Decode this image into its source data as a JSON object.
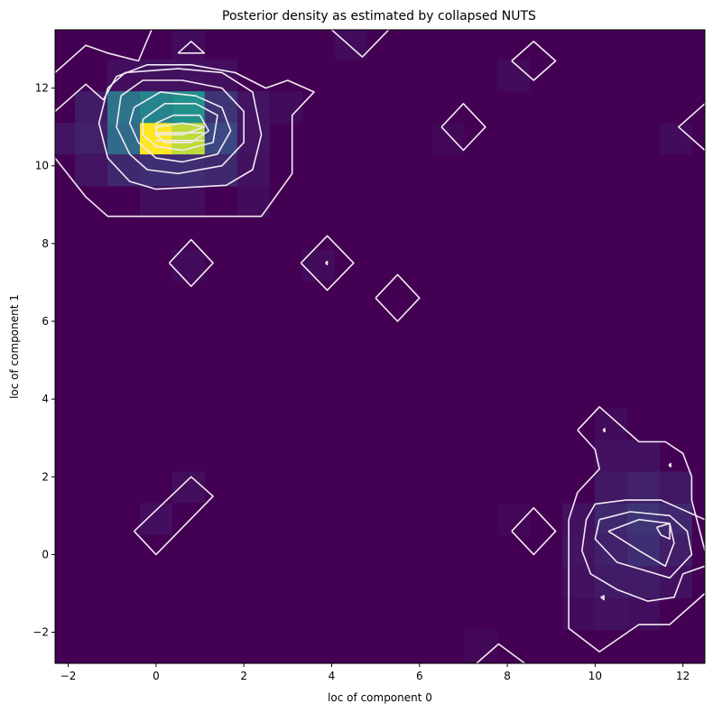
{
  "chart_data": {
    "type": "heatmap",
    "title": "Posterior density as estimated by collapsed NUTS",
    "xlabel": "loc of component 0",
    "ylabel": "loc of component 1",
    "xlim": [
      -2.3,
      12.5
    ],
    "ylim": [
      -2.8,
      13.5
    ],
    "xticks": [
      -2,
      0,
      2,
      4,
      6,
      8,
      10,
      12
    ],
    "yticks": [
      -2,
      0,
      2,
      4,
      6,
      8,
      10,
      12
    ],
    "grid": false,
    "legend": "none",
    "colormap": "viridis",
    "cell_size": [
      0.74,
      0.816
    ],
    "background_color": "#440154",
    "cells": [
      {
        "x": 0.0,
        "y": 10.7,
        "density": 1.0
      },
      {
        "x": 0.74,
        "y": 10.7,
        "density": 0.9
      },
      {
        "x": 0.0,
        "y": 11.51,
        "density": 0.45
      },
      {
        "x": 0.74,
        "y": 11.51,
        "density": 0.5
      },
      {
        "x": -0.74,
        "y": 11.51,
        "density": 0.38
      },
      {
        "x": -0.74,
        "y": 10.7,
        "density": 0.35
      },
      {
        "x": 1.48,
        "y": 10.7,
        "density": 0.22
      },
      {
        "x": 1.48,
        "y": 11.51,
        "density": 0.16
      },
      {
        "x": -0.74,
        "y": 9.88,
        "density": 0.12
      },
      {
        "x": 0.0,
        "y": 9.88,
        "density": 0.14
      },
      {
        "x": 0.74,
        "y": 9.88,
        "density": 0.14
      },
      {
        "x": 1.48,
        "y": 9.88,
        "density": 0.12
      },
      {
        "x": -1.48,
        "y": 11.51,
        "density": 0.08
      },
      {
        "x": -1.48,
        "y": 10.7,
        "density": 0.1
      },
      {
        "x": -2.22,
        "y": 10.7,
        "density": 0.06
      },
      {
        "x": -1.48,
        "y": 9.88,
        "density": 0.06
      },
      {
        "x": 2.22,
        "y": 10.7,
        "density": 0.06
      },
      {
        "x": 2.22,
        "y": 11.51,
        "density": 0.06
      },
      {
        "x": 2.22,
        "y": 9.88,
        "density": 0.05
      },
      {
        "x": 0.0,
        "y": 12.33,
        "density": 0.05
      },
      {
        "x": 0.74,
        "y": 12.33,
        "density": 0.05
      },
      {
        "x": -0.74,
        "y": 12.33,
        "density": 0.04
      },
      {
        "x": 1.48,
        "y": 12.33,
        "density": 0.04
      },
      {
        "x": 2.96,
        "y": 11.51,
        "density": 0.03
      },
      {
        "x": 0.0,
        "y": 9.07,
        "density": 0.04
      },
      {
        "x": 0.74,
        "y": 9.07,
        "density": 0.04
      },
      {
        "x": 2.22,
        "y": 9.07,
        "density": 0.03
      },
      {
        "x": 0.74,
        "y": 13.14,
        "density": 0.03
      },
      {
        "x": 4.44,
        "y": 13.14,
        "density": 0.03
      },
      {
        "x": 0.74,
        "y": 7.44,
        "density": 0.03
      },
      {
        "x": 3.7,
        "y": 7.44,
        "density": 0.03
      },
      {
        "x": 6.66,
        "y": 10.7,
        "density": 0.02
      },
      {
        "x": 8.14,
        "y": 12.33,
        "density": 0.03
      },
      {
        "x": 11.84,
        "y": 10.7,
        "density": 0.03
      },
      {
        "x": 0.74,
        "y": 1.73,
        "density": 0.04
      },
      {
        "x": 0.0,
        "y": 0.91,
        "density": 0.04
      },
      {
        "x": 11.1,
        "y": 0.91,
        "density": 0.16
      },
      {
        "x": 11.1,
        "y": 0.1,
        "density": 0.14
      },
      {
        "x": 11.84,
        "y": 0.91,
        "density": 0.12
      },
      {
        "x": 10.36,
        "y": 0.91,
        "density": 0.12
      },
      {
        "x": 10.36,
        "y": 0.1,
        "density": 0.1
      },
      {
        "x": 11.84,
        "y": 0.1,
        "density": 0.09
      },
      {
        "x": 11.1,
        "y": 1.73,
        "density": 0.1
      },
      {
        "x": 11.84,
        "y": 1.73,
        "density": 0.07
      },
      {
        "x": 10.36,
        "y": 1.73,
        "density": 0.07
      },
      {
        "x": 9.62,
        "y": 0.91,
        "density": 0.05
      },
      {
        "x": 9.62,
        "y": 0.1,
        "density": 0.06
      },
      {
        "x": 10.36,
        "y": -0.72,
        "density": 0.08
      },
      {
        "x": 11.1,
        "y": -0.72,
        "density": 0.08
      },
      {
        "x": 11.84,
        "y": -0.72,
        "density": 0.05
      },
      {
        "x": 9.62,
        "y": -0.72,
        "density": 0.05
      },
      {
        "x": 10.36,
        "y": -1.54,
        "density": 0.05
      },
      {
        "x": 11.1,
        "y": -1.54,
        "density": 0.04
      },
      {
        "x": 9.62,
        "y": -1.54,
        "density": 0.03
      },
      {
        "x": 10.36,
        "y": 2.54,
        "density": 0.05
      },
      {
        "x": 11.1,
        "y": 2.54,
        "density": 0.05
      },
      {
        "x": 10.36,
        "y": 3.36,
        "density": 0.03
      },
      {
        "x": 8.14,
        "y": 0.91,
        "density": 0.02
      },
      {
        "x": 7.4,
        "y": -2.35,
        "density": 0.02
      }
    ],
    "contours": [
      {
        "level": 1,
        "points": [
          [
            -2.3,
            12.4
          ],
          [
            -1.6,
            13.1
          ],
          [
            -1.1,
            12.9
          ],
          [
            -0.4,
            12.7
          ],
          [
            -0.1,
            13.5
          ]
        ]
      },
      {
        "level": 1,
        "points": [
          [
            -2.3,
            11.4
          ],
          [
            -1.6,
            12.1
          ],
          [
            -1.2,
            11.7
          ],
          [
            -0.9,
            12.3
          ],
          [
            -0.2,
            12.6
          ],
          [
            0.8,
            12.6
          ],
          [
            1.8,
            12.4
          ],
          [
            2.5,
            12.0
          ],
          [
            3.0,
            12.2
          ],
          [
            3.6,
            11.9
          ],
          [
            3.1,
            11.3
          ],
          [
            3.1,
            9.8
          ],
          [
            2.4,
            8.7
          ],
          [
            0.6,
            8.7
          ],
          [
            -1.1,
            8.7
          ],
          [
            -1.6,
            9.2
          ],
          [
            -2.3,
            10.2
          ]
        ]
      },
      {
        "level": 2,
        "points": [
          [
            -1.1,
            12.0
          ],
          [
            -0.7,
            12.4
          ],
          [
            0.5,
            12.5
          ],
          [
            1.5,
            12.4
          ],
          [
            2.2,
            11.9
          ],
          [
            2.4,
            10.8
          ],
          [
            2.2,
            9.9
          ],
          [
            1.6,
            9.5
          ],
          [
            0.0,
            9.4
          ],
          [
            -0.6,
            9.6
          ],
          [
            -1.1,
            10.2
          ],
          [
            -1.3,
            11.1
          ],
          [
            -1.1,
            12.0
          ]
        ]
      },
      {
        "level": 3,
        "points": [
          [
            -0.8,
            11.8
          ],
          [
            -0.3,
            12.2
          ],
          [
            0.6,
            12.2
          ],
          [
            1.5,
            12.0
          ],
          [
            2.0,
            11.4
          ],
          [
            2.0,
            10.6
          ],
          [
            1.5,
            10.0
          ],
          [
            0.5,
            9.8
          ],
          [
            -0.2,
            9.9
          ],
          [
            -0.6,
            10.3
          ],
          [
            -0.9,
            11.0
          ],
          [
            -0.8,
            11.8
          ]
        ]
      },
      {
        "level": 4,
        "points": [
          [
            -0.5,
            11.5
          ],
          [
            0.1,
            11.9
          ],
          [
            0.9,
            11.8
          ],
          [
            1.5,
            11.5
          ],
          [
            1.7,
            10.9
          ],
          [
            1.4,
            10.3
          ],
          [
            0.6,
            10.1
          ],
          [
            0.0,
            10.2
          ],
          [
            -0.4,
            10.6
          ],
          [
            -0.6,
            11.1
          ],
          [
            -0.5,
            11.5
          ]
        ]
      },
      {
        "level": 5,
        "points": [
          [
            -0.3,
            11.2
          ],
          [
            0.2,
            11.6
          ],
          [
            0.9,
            11.6
          ],
          [
            1.4,
            11.3
          ],
          [
            1.3,
            10.6
          ],
          [
            0.6,
            10.4
          ],
          [
            0.0,
            10.5
          ],
          [
            -0.3,
            10.8
          ],
          [
            -0.3,
            11.2
          ]
        ]
      },
      {
        "level": 6,
        "points": [
          [
            0.0,
            11.1
          ],
          [
            0.4,
            11.3
          ],
          [
            1.0,
            11.3
          ],
          [
            1.2,
            10.9
          ],
          [
            0.8,
            10.6
          ],
          [
            0.2,
            10.6
          ],
          [
            0.0,
            10.8
          ],
          [
            0.0,
            11.1
          ]
        ]
      },
      {
        "level": 7,
        "points": [
          [
            0.0,
            11.0
          ],
          [
            0.6,
            11.1
          ],
          [
            1.1,
            11.0
          ],
          [
            0.6,
            10.8
          ],
          [
            0.0,
            10.8
          ],
          [
            0.0,
            11.0
          ]
        ]
      },
      {
        "level": 8,
        "points": [
          [
            0.0,
            10.85
          ],
          [
            1.1,
            10.85
          ]
        ]
      },
      {
        "level": 8,
        "points": [
          [
            0.0,
            10.65
          ],
          [
            1.1,
            10.65
          ]
        ]
      },
      {
        "level": 1,
        "points": [
          [
            0.5,
            12.9
          ],
          [
            0.8,
            13.2
          ],
          [
            1.1,
            12.9
          ],
          [
            0.5,
            12.9
          ]
        ]
      },
      {
        "level": 1,
        "points": [
          [
            4.0,
            13.5
          ],
          [
            4.7,
            12.8
          ],
          [
            5.3,
            13.5
          ]
        ]
      },
      {
        "level": 1,
        "points": [
          [
            8.1,
            12.7
          ],
          [
            8.6,
            13.2
          ],
          [
            9.1,
            12.7
          ],
          [
            8.6,
            12.2
          ],
          [
            8.1,
            12.7
          ]
        ]
      },
      {
        "level": 1,
        "points": [
          [
            6.5,
            11.0
          ],
          [
            7.0,
            11.6
          ],
          [
            7.5,
            11.0
          ],
          [
            7.0,
            10.4
          ],
          [
            6.5,
            11.0
          ]
        ]
      },
      {
        "level": 1,
        "points": [
          [
            12.5,
            11.6
          ],
          [
            11.9,
            11.0
          ],
          [
            12.5,
            10.4
          ]
        ]
      },
      {
        "level": 1,
        "points": [
          [
            0.3,
            7.5
          ],
          [
            0.8,
            8.1
          ],
          [
            1.3,
            7.5
          ],
          [
            0.8,
            6.9
          ],
          [
            0.3,
            7.5
          ]
        ]
      },
      {
        "level": 1,
        "points": [
          [
            3.3,
            7.5
          ],
          [
            3.9,
            8.2
          ],
          [
            4.5,
            7.5
          ],
          [
            3.9,
            6.8
          ],
          [
            3.3,
            7.5
          ]
        ]
      },
      {
        "level": 1,
        "points": [
          [
            5.0,
            6.6
          ],
          [
            5.5,
            7.2
          ],
          [
            6.0,
            6.6
          ],
          [
            5.5,
            6.0
          ],
          [
            5.0,
            6.6
          ]
        ]
      },
      {
        "level": 1,
        "points": [
          [
            -0.5,
            0.6
          ],
          [
            0.8,
            2.0
          ],
          [
            1.3,
            1.5
          ],
          [
            0.0,
            0.0
          ],
          [
            -0.5,
            0.6
          ]
        ]
      },
      {
        "level": 1,
        "points": [
          [
            8.1,
            0.6
          ],
          [
            8.6,
            1.2
          ],
          [
            9.1,
            0.6
          ],
          [
            8.6,
            0.0
          ],
          [
            8.1,
            0.6
          ]
        ]
      },
      {
        "level": 1,
        "points": [
          [
            7.3,
            -2.8
          ],
          [
            7.8,
            -2.3
          ],
          [
            8.4,
            -2.8
          ]
        ]
      },
      {
        "level": 1,
        "points": [
          [
            9.6,
            3.2
          ],
          [
            10.1,
            3.8
          ],
          [
            10.7,
            3.2
          ],
          [
            11.0,
            2.9
          ],
          [
            11.6,
            2.9
          ],
          [
            12.0,
            2.6
          ],
          [
            12.2,
            2.0
          ],
          [
            12.2,
            1.4
          ],
          [
            12.5,
            0.1
          ]
        ]
      },
      {
        "level": 1,
        "points": [
          [
            12.5,
            -1.0
          ],
          [
            11.7,
            -1.8
          ],
          [
            11.0,
            -1.8
          ],
          [
            10.1,
            -2.5
          ],
          [
            9.4,
            -1.9
          ],
          [
            9.4,
            -0.6
          ],
          [
            9.4,
            0.9
          ],
          [
            9.6,
            1.6
          ],
          [
            10.1,
            2.2
          ],
          [
            10.0,
            2.7
          ],
          [
            9.6,
            3.2
          ]
        ]
      },
      {
        "level": 2,
        "points": [
          [
            10.0,
            1.3
          ],
          [
            10.7,
            1.4
          ],
          [
            11.5,
            1.4
          ],
          [
            11.9,
            1.2
          ],
          [
            12.5,
            0.9
          ]
        ]
      },
      {
        "level": 2,
        "points": [
          [
            12.5,
            -0.3
          ],
          [
            12.0,
            -0.5
          ],
          [
            11.8,
            -1.1
          ],
          [
            11.2,
            -1.2
          ],
          [
            10.5,
            -0.9
          ],
          [
            9.9,
            -0.5
          ],
          [
            9.7,
            0.1
          ],
          [
            9.8,
            0.9
          ],
          [
            10.0,
            1.3
          ]
        ]
      },
      {
        "level": 3,
        "points": [
          [
            10.1,
            0.9
          ],
          [
            10.8,
            1.1
          ],
          [
            11.7,
            1.0
          ],
          [
            12.1,
            0.6
          ],
          [
            12.2,
            0.0
          ],
          [
            11.7,
            -0.6
          ],
          [
            11.1,
            -0.4
          ],
          [
            10.5,
            -0.2
          ],
          [
            10.0,
            0.4
          ],
          [
            10.1,
            0.9
          ]
        ]
      },
      {
        "level": 4,
        "points": [
          [
            10.3,
            0.6
          ],
          [
            11.0,
            0.9
          ],
          [
            11.7,
            0.8
          ],
          [
            11.8,
            0.3
          ],
          [
            11.6,
            -0.3
          ],
          [
            11.0,
            0.1
          ],
          [
            10.3,
            0.6
          ]
        ]
      },
      {
        "level": 5,
        "points": [
          [
            11.4,
            0.7
          ],
          [
            11.7,
            0.8
          ],
          [
            11.7,
            0.4
          ],
          [
            11.5,
            0.5
          ],
          [
            11.4,
            0.7
          ]
        ]
      },
      {
        "level": 5,
        "points": [
          [
            10.18,
            3.2
          ],
          [
            10.22,
            3.24
          ],
          [
            10.22,
            3.16
          ],
          [
            10.18,
            3.2
          ]
        ]
      },
      {
        "level": 5,
        "points": [
          [
            11.68,
            2.3
          ],
          [
            11.72,
            2.34
          ],
          [
            11.72,
            2.26
          ],
          [
            11.68,
            2.3
          ]
        ]
      },
      {
        "level": 5,
        "points": [
          [
            10.13,
            -1.1
          ],
          [
            10.2,
            -1.06
          ],
          [
            10.2,
            -1.16
          ],
          [
            10.13,
            -1.1
          ]
        ]
      },
      {
        "level": 5,
        "points": [
          [
            3.86,
            7.5
          ],
          [
            3.9,
            7.54
          ],
          [
            3.9,
            7.46
          ],
          [
            3.86,
            7.5
          ]
        ]
      }
    ]
  }
}
